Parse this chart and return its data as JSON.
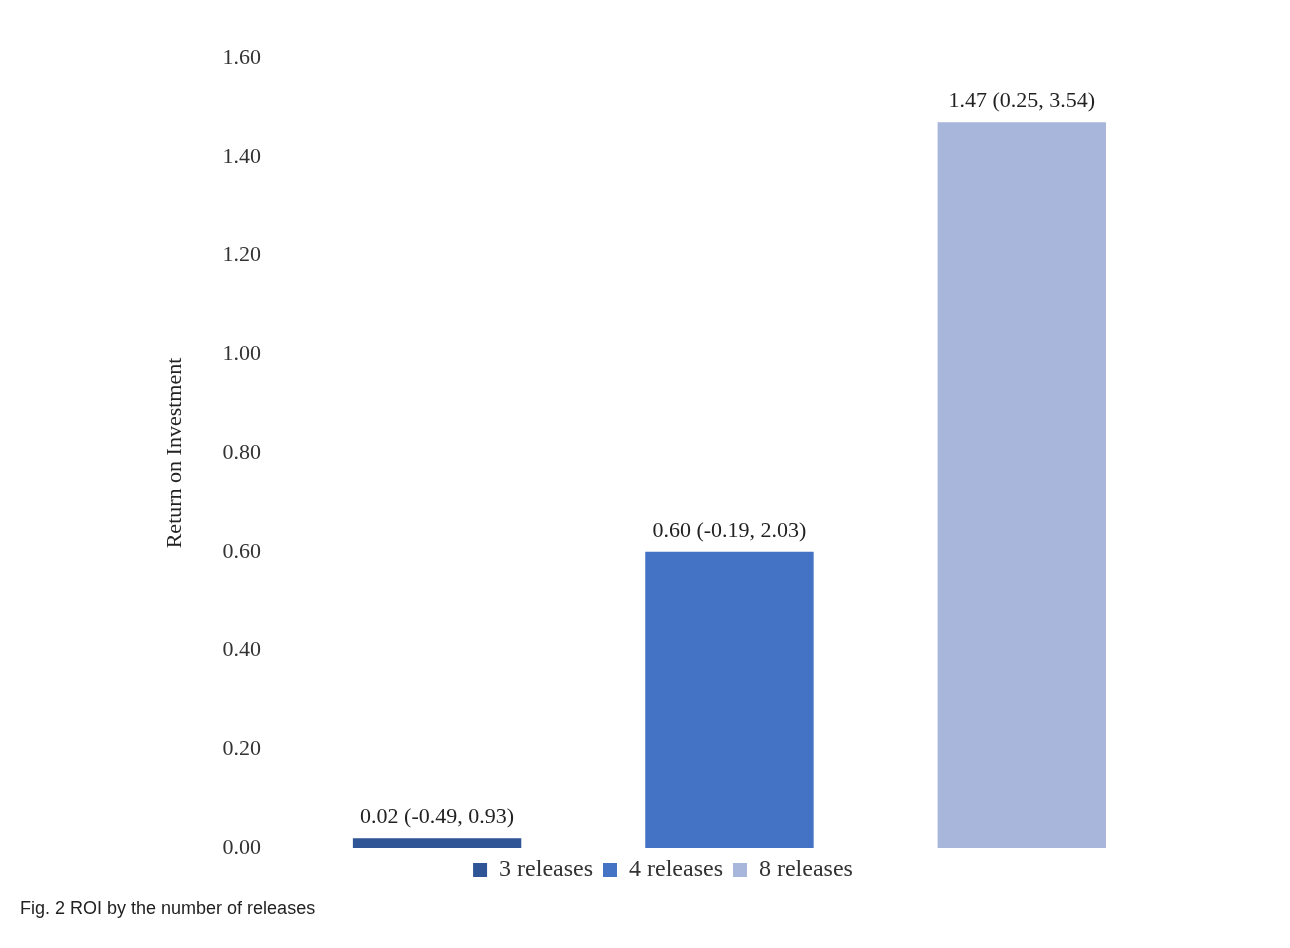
{
  "chart_data": {
    "type": "bar",
    "ylabel": "Return on Investment",
    "categories": [
      null,
      null,
      null
    ],
    "stacked": true,
    "series": [
      {
        "name": "3 releases",
        "color": "#2f5597",
        "values": [
          0.02,
          null,
          null
        ],
        "value_labels": [
          "0.02 (-0.49, 0.93)",
          null,
          null
        ]
      },
      {
        "name": "4 releases",
        "color": "#4472c4",
        "values": [
          null,
          0.6,
          null
        ],
        "value_labels": [
          null,
          "0.60 (-0.19, 2.03)",
          null
        ]
      },
      {
        "name": "8 releases",
        "color": "#a9b6db",
        "values": [
          null,
          null,
          1.47
        ],
        "value_labels": [
          null,
          null,
          "1.47 (0.25, 3.54)"
        ]
      }
    ],
    "ylim": [
      0,
      1.6
    ],
    "yticks": [
      {
        "value": 0,
        "label": "0.00"
      },
      {
        "value": 0.2,
        "label": "0.20"
      },
      {
        "value": 0.4,
        "label": "0.40"
      },
      {
        "value": 0.6,
        "label": "0.60"
      },
      {
        "value": 0.8,
        "label": "0.80"
      },
      {
        "value": 1.0,
        "label": "1.00"
      },
      {
        "value": 1.2,
        "label": "1.20"
      },
      {
        "value": 1.4,
        "label": "1.40"
      },
      {
        "value": 1.6,
        "label": "1.60"
      }
    ],
    "tick_labels": "y",
    "grid": false,
    "legend": "bottom",
    "annotations": [
      "Fig. 2 ROI by the number of releases"
    ]
  }
}
